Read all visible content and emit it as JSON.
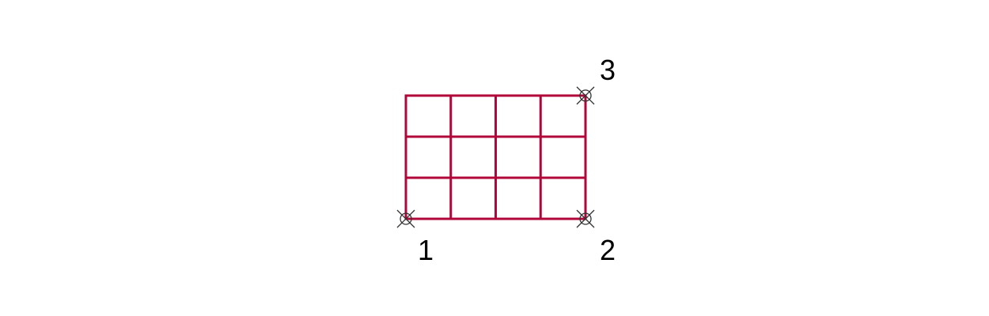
{
  "diagram": {
    "grid": {
      "columns": 4,
      "rows": 3,
      "line_color": "#b0063a"
    },
    "markers": [
      {
        "id": "point-1",
        "label": "1",
        "corner": "bottom-left",
        "icon": "circle-cross-icon"
      },
      {
        "id": "point-2",
        "label": "2",
        "corner": "bottom-right",
        "icon": "circle-cross-icon"
      },
      {
        "id": "point-3",
        "label": "3",
        "corner": "top-right",
        "icon": "circle-cross-icon"
      }
    ],
    "marker_color": "#333333"
  }
}
